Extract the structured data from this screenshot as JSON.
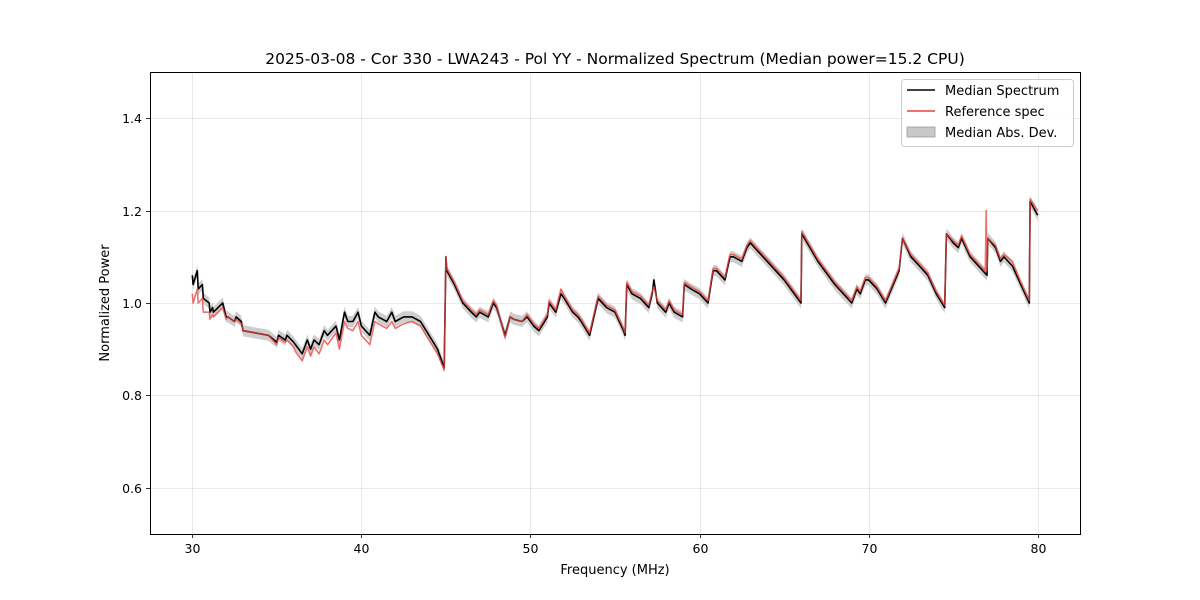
{
  "chart_data": {
    "type": "line",
    "title": "2025-03-08 - Cor 330 - LWA243 - Pol YY - Normalized Spectrum (Median power=15.2 CPU)",
    "xlabel": "Frequency (MHz)",
    "ylabel": "Normalized Power",
    "xlim": [
      27.5,
      82.5
    ],
    "ylim": [
      0.5,
      1.5
    ],
    "xticks": [
      30,
      40,
      50,
      60,
      70,
      80
    ],
    "yticks": [
      0.6,
      0.8,
      1.0,
      1.2,
      1.4
    ],
    "xtick_labels": [
      "30",
      "40",
      "50",
      "60",
      "70",
      "80"
    ],
    "ytick_labels": [
      "0.6",
      "0.8",
      "1.0",
      "1.2",
      "1.4"
    ],
    "grid": true,
    "legend_position": "top-right",
    "series": [
      {
        "name": "Median Spectrum",
        "color": "#000000",
        "x": [
          30,
          30.05,
          30.3,
          30.35,
          30.6,
          30.65,
          31.0,
          31.05,
          31.2,
          31.25,
          31.8,
          32.0,
          32.1,
          32.5,
          32.6,
          32.9,
          33.0,
          34.5,
          35.0,
          35.1,
          35.5,
          35.6,
          36.0,
          36.1,
          36.5,
          36.8,
          37.0,
          37.2,
          37.5,
          37.8,
          38.0,
          38.5,
          38.7,
          39.0,
          39.2,
          39.5,
          39.8,
          40.0,
          40.5,
          40.8,
          41.0,
          41.5,
          41.8,
          42.0,
          42.5,
          43.0,
          43.5,
          44.0,
          44.5,
          44.9,
          45.0,
          45.05,
          45.5,
          46.0,
          46.5,
          46.8,
          47.0,
          47.5,
          47.8,
          48.0,
          48.5,
          48.8,
          49.0,
          49.5,
          49.8,
          50.0,
          50.2,
          50.5,
          51.0,
          51.1,
          51.5,
          51.8,
          52.0,
          52.5,
          52.8,
          53.0,
          53.5,
          54.0,
          54.5,
          55.0,
          55.5,
          55.6,
          55.7,
          56.0,
          56.5,
          57.0,
          57.2,
          57.3,
          57.5,
          58.0,
          58.2,
          58.5,
          59.0,
          59.1,
          59.5,
          60.0,
          60.5,
          60.8,
          61.0,
          61.5,
          61.8,
          62.0,
          62.5,
          62.8,
          63.0,
          63.5,
          64.0,
          65.0,
          66.0,
          66.05,
          67.0,
          68.0,
          69.0,
          69.3,
          69.5,
          69.8,
          70.0,
          70.5,
          71.0,
          71.8,
          72.0,
          72.5,
          73.0,
          73.5,
          74.0,
          74.5,
          74.6,
          75.0,
          75.3,
          75.5,
          76.0,
          76.5,
          77.0,
          77.05,
          77.5,
          77.8,
          78.0,
          78.5,
          79.0,
          79.5,
          79.55,
          80.0
        ],
        "values": [
          1.06,
          1.04,
          1.07,
          1.03,
          1.04,
          1.01,
          1.0,
          0.98,
          0.99,
          0.98,
          1.0,
          0.97,
          0.97,
          0.96,
          0.97,
          0.96,
          0.94,
          0.93,
          0.915,
          0.93,
          0.92,
          0.93,
          0.915,
          0.91,
          0.89,
          0.92,
          0.9,
          0.92,
          0.91,
          0.94,
          0.93,
          0.95,
          0.92,
          0.98,
          0.96,
          0.96,
          0.98,
          0.95,
          0.93,
          0.98,
          0.97,
          0.96,
          0.98,
          0.96,
          0.97,
          0.97,
          0.96,
          0.93,
          0.9,
          0.86,
          1.1,
          1.07,
          1.04,
          1.0,
          0.98,
          0.97,
          0.98,
          0.97,
          1.0,
          0.99,
          0.93,
          0.97,
          0.965,
          0.96,
          0.97,
          0.96,
          0.95,
          0.94,
          0.97,
          1.0,
          0.98,
          1.02,
          1.01,
          0.98,
          0.97,
          0.96,
          0.93,
          1.01,
          0.99,
          0.98,
          0.94,
          0.93,
          1.04,
          1.02,
          1.01,
          0.99,
          1.02,
          1.05,
          1.0,
          0.98,
          1.0,
          0.98,
          0.97,
          1.04,
          1.03,
          1.02,
          1.0,
          1.07,
          1.07,
          1.05,
          1.1,
          1.1,
          1.09,
          1.12,
          1.13,
          1.11,
          1.09,
          1.05,
          1.0,
          1.15,
          1.09,
          1.04,
          1.0,
          1.03,
          1.02,
          1.05,
          1.05,
          1.03,
          1.0,
          1.07,
          1.14,
          1.1,
          1.08,
          1.06,
          1.02,
          0.99,
          1.15,
          1.13,
          1.12,
          1.14,
          1.1,
          1.08,
          1.06,
          1.14,
          1.12,
          1.09,
          1.1,
          1.08,
          1.04,
          1.0,
          1.22,
          1.19
        ]
      },
      {
        "name": "Reference spec",
        "color": "#e8423d",
        "x": [
          30,
          30.05,
          30.3,
          30.35,
          30.6,
          30.65,
          31.0,
          31.05,
          31.2,
          31.25,
          31.8,
          32.0,
          32.1,
          32.5,
          32.6,
          32.9,
          33.0,
          34.5,
          35.0,
          35.1,
          35.5,
          35.6,
          36.0,
          36.1,
          36.5,
          36.8,
          37.0,
          37.2,
          37.5,
          37.8,
          38.0,
          38.5,
          38.7,
          39.0,
          39.2,
          39.5,
          39.8,
          40.0,
          40.5,
          40.8,
          41.0,
          41.5,
          41.8,
          42.0,
          42.5,
          43.0,
          43.5,
          44.0,
          44.5,
          44.9,
          45.0,
          45.05,
          45.5,
          46.0,
          46.5,
          46.8,
          47.0,
          47.5,
          47.8,
          48.0,
          48.5,
          48.8,
          49.0,
          49.5,
          49.8,
          50.0,
          50.2,
          50.5,
          51.0,
          51.1,
          51.5,
          51.8,
          52.0,
          52.5,
          52.8,
          53.0,
          53.5,
          54.0,
          54.5,
          55.0,
          55.5,
          55.6,
          55.7,
          56.0,
          56.5,
          57.0,
          57.2,
          57.3,
          57.5,
          58.0,
          58.2,
          58.5,
          59.0,
          59.1,
          59.5,
          60.0,
          60.5,
          60.8,
          61.0,
          61.5,
          61.8,
          62.0,
          62.5,
          62.8,
          63.0,
          63.5,
          64.0,
          65.0,
          66.0,
          66.05,
          67.0,
          68.0,
          69.0,
          69.3,
          69.5,
          69.8,
          70.0,
          70.5,
          71.0,
          71.8,
          72.0,
          72.5,
          73.0,
          73.5,
          74.0,
          74.5,
          74.6,
          75.0,
          75.3,
          75.5,
          76.0,
          76.5,
          76.9,
          76.95,
          77.0,
          77.05,
          77.5,
          77.8,
          78.0,
          78.5,
          79.0,
          79.5,
          79.55,
          80.0
        ],
        "values": [
          1.02,
          1.0,
          1.03,
          1.0,
          1.01,
          0.98,
          0.98,
          0.965,
          0.975,
          0.97,
          0.99,
          0.965,
          0.97,
          0.96,
          0.965,
          0.955,
          0.94,
          0.93,
          0.91,
          0.925,
          0.915,
          0.92,
          0.905,
          0.895,
          0.875,
          0.905,
          0.885,
          0.905,
          0.89,
          0.92,
          0.91,
          0.935,
          0.9,
          0.96,
          0.945,
          0.94,
          0.96,
          0.93,
          0.91,
          0.96,
          0.955,
          0.945,
          0.96,
          0.945,
          0.955,
          0.96,
          0.95,
          0.92,
          0.89,
          0.855,
          1.1,
          1.075,
          1.045,
          1.005,
          0.985,
          0.975,
          0.985,
          0.975,
          1.005,
          0.995,
          0.925,
          0.97,
          0.965,
          0.96,
          0.975,
          0.965,
          0.955,
          0.945,
          0.975,
          1.005,
          0.985,
          1.03,
          1.015,
          0.985,
          0.975,
          0.965,
          0.935,
          1.015,
          0.995,
          0.985,
          0.945,
          0.935,
          1.045,
          1.025,
          1.015,
          0.995,
          1.025,
          1.035,
          1.005,
          0.985,
          1.005,
          0.985,
          0.975,
          1.045,
          1.035,
          1.025,
          1.005,
          1.075,
          1.075,
          1.055,
          1.105,
          1.105,
          1.095,
          1.125,
          1.135,
          1.115,
          1.095,
          1.055,
          1.005,
          1.155,
          1.095,
          1.045,
          1.005,
          1.035,
          1.025,
          1.055,
          1.055,
          1.035,
          1.005,
          1.075,
          1.14,
          1.105,
          1.085,
          1.065,
          1.025,
          0.995,
          1.15,
          1.135,
          1.125,
          1.145,
          1.105,
          1.085,
          1.07,
          1.2,
          1.07,
          1.14,
          1.125,
          1.095,
          1.105,
          1.09,
          1.045,
          1.005,
          1.225,
          1.2
        ]
      }
    ],
    "band": {
      "name": "Median Abs. Dev.",
      "color": "#c8c8c8",
      "follows_series": "Median Spectrum",
      "half_width": 0.012
    }
  }
}
